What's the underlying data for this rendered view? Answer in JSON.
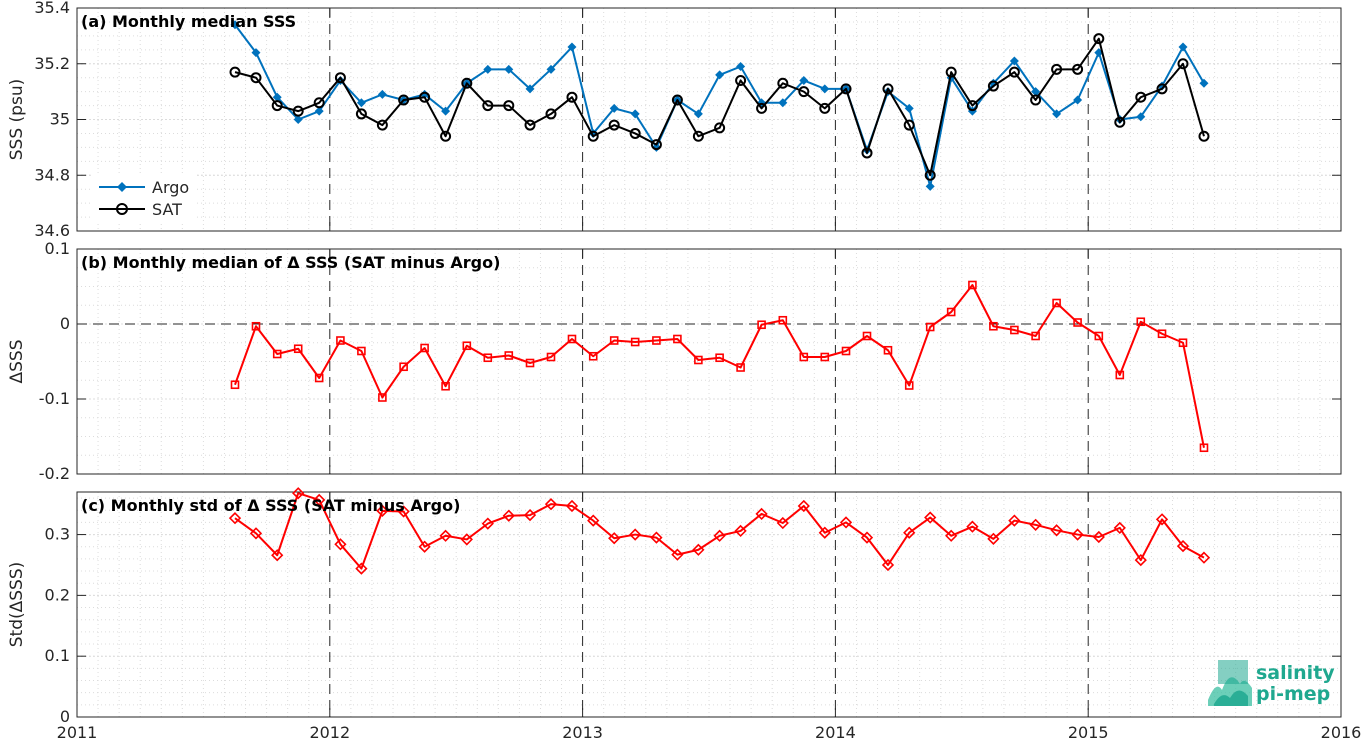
{
  "logo": {
    "line1": "salinity",
    "line2": "pi-mep",
    "color": "#1fa88f"
  },
  "colors": {
    "argo": "#0072bd",
    "sat": "#000000",
    "delta": "#ff0000",
    "grid": "#dcdcdc"
  },
  "chart_data": [
    {
      "type": "line",
      "title": "(a) Monthly median SSS",
      "xlabel": "",
      "ylabel": "SSS (psu)",
      "xlim": [
        2011,
        2016
      ],
      "ylim": [
        34.6,
        35.4
      ],
      "xticks": [
        "2011",
        "2012",
        "2013",
        "2014",
        "2015",
        "2016"
      ],
      "yticks": [
        "34.6",
        "34.8",
        "35",
        "35.2",
        "35.4"
      ],
      "grid": true,
      "legend": "lower-left",
      "x": [
        2011.625,
        2011.708,
        2011.792,
        2011.875,
        2011.958,
        2012.042,
        2012.125,
        2012.208,
        2012.292,
        2012.375,
        2012.458,
        2012.542,
        2012.625,
        2012.708,
        2012.792,
        2012.875,
        2012.958,
        2013.042,
        2013.125,
        2013.208,
        2013.292,
        2013.375,
        2013.458,
        2013.542,
        2013.625,
        2013.708,
        2013.792,
        2013.875,
        2013.958,
        2014.042,
        2014.125,
        2014.208,
        2014.292,
        2014.375,
        2014.458,
        2014.542,
        2014.625,
        2014.708,
        2014.792,
        2014.875,
        2014.958,
        2015.042,
        2015.125,
        2015.208,
        2015.292,
        2015.375,
        2015.458
      ],
      "series": [
        {
          "name": "Argo",
          "marker": "diamond-filled",
          "values": [
            35.34,
            35.24,
            35.08,
            35.0,
            35.03,
            35.14,
            35.06,
            35.09,
            35.07,
            35.09,
            35.03,
            35.13,
            35.18,
            35.18,
            35.11,
            35.18,
            35.26,
            34.95,
            35.04,
            35.02,
            34.9,
            35.07,
            35.02,
            35.16,
            35.19,
            35.06,
            35.06,
            35.14,
            35.11,
            35.11,
            34.89,
            35.1,
            35.04,
            34.76,
            35.15,
            35.03,
            35.13,
            35.21,
            35.1,
            35.02,
            35.07,
            35.24,
            35.0,
            35.01,
            35.12,
            35.26,
            35.13
          ]
        },
        {
          "name": "SAT",
          "marker": "circle-open",
          "values": [
            35.17,
            35.15,
            35.05,
            35.03,
            35.06,
            35.15,
            35.02,
            34.98,
            35.07,
            35.08,
            34.94,
            35.13,
            35.05,
            35.05,
            34.98,
            35.02,
            35.08,
            34.94,
            34.98,
            34.95,
            34.91,
            35.07,
            34.94,
            34.97,
            35.14,
            35.04,
            35.13,
            35.1,
            35.04,
            35.11,
            34.88,
            35.11,
            34.98,
            34.8,
            35.17,
            35.05,
            35.12,
            35.17,
            35.07,
            35.18,
            35.18,
            35.29,
            34.99,
            35.08,
            35.11,
            35.2,
            34.94
          ]
        }
      ]
    },
    {
      "type": "line",
      "title": "(b) Monthly median of Δ SSS (SAT minus Argo)",
      "xlabel": "",
      "ylabel": "ΔSSS",
      "xlim": [
        2011,
        2016
      ],
      "ylim": [
        -0.2,
        0.1
      ],
      "xticks": [
        "2011",
        "2012",
        "2013",
        "2014",
        "2015",
        "2016"
      ],
      "yticks": [
        "-0.2",
        "-0.1",
        "0",
        "0.1"
      ],
      "grid": true,
      "x": [
        2011.625,
        2011.708,
        2011.792,
        2011.875,
        2011.958,
        2012.042,
        2012.125,
        2012.208,
        2012.292,
        2012.375,
        2012.458,
        2012.542,
        2012.625,
        2012.708,
        2012.792,
        2012.875,
        2012.958,
        2013.042,
        2013.125,
        2013.208,
        2013.292,
        2013.375,
        2013.458,
        2013.542,
        2013.625,
        2013.708,
        2013.792,
        2013.875,
        2013.958,
        2014.042,
        2014.125,
        2014.208,
        2014.292,
        2014.375,
        2014.458,
        2014.542,
        2014.625,
        2014.708,
        2014.792,
        2014.875,
        2014.958,
        2015.042,
        2015.125,
        2015.208,
        2015.292,
        2015.375,
        2015.458
      ],
      "series": [
        {
          "name": "",
          "marker": "square-open",
          "values": [
            -0.081,
            -0.003,
            -0.04,
            -0.033,
            -0.072,
            -0.022,
            -0.036,
            -0.098,
            -0.057,
            -0.032,
            -0.083,
            -0.029,
            -0.045,
            -0.042,
            -0.052,
            -0.044,
            -0.02,
            -0.043,
            -0.022,
            -0.024,
            -0.022,
            -0.02,
            -0.048,
            -0.045,
            -0.058,
            -0.001,
            0.005,
            -0.044,
            -0.044,
            -0.036,
            -0.016,
            -0.035,
            -0.082,
            -0.004,
            0.016,
            0.052,
            -0.003,
            -0.008,
            -0.016,
            0.028,
            0.002,
            -0.016,
            -0.068,
            0.003,
            -0.013,
            -0.025,
            -0.165
          ]
        }
      ]
    },
    {
      "type": "line",
      "title": "(c) Monthly std of Δ SSS (SAT minus Argo)",
      "xlabel": "",
      "ylabel": "Std(ΔSSS)",
      "xlim": [
        2011,
        2016
      ],
      "ylim": [
        0,
        0.37
      ],
      "xticks": [
        "2011",
        "2012",
        "2013",
        "2014",
        "2015",
        "2016"
      ],
      "yticks": [
        "0",
        "0.1",
        "0.2",
        "0.3"
      ],
      "grid": true,
      "x": [
        2011.625,
        2011.708,
        2011.792,
        2011.875,
        2011.958,
        2012.042,
        2012.125,
        2012.208,
        2012.292,
        2012.375,
        2012.458,
        2012.542,
        2012.625,
        2012.708,
        2012.792,
        2012.875,
        2012.958,
        2013.042,
        2013.125,
        2013.208,
        2013.292,
        2013.375,
        2013.458,
        2013.542,
        2013.625,
        2013.708,
        2013.792,
        2013.875,
        2013.958,
        2014.042,
        2014.125,
        2014.208,
        2014.292,
        2014.375,
        2014.458,
        2014.542,
        2014.625,
        2014.708,
        2014.792,
        2014.875,
        2014.958,
        2015.042,
        2015.125,
        2015.208,
        2015.292,
        2015.375,
        2015.458
      ],
      "series": [
        {
          "name": "",
          "marker": "diamond-open",
          "values": [
            0.327,
            0.302,
            0.266,
            0.368,
            0.357,
            0.284,
            0.244,
            0.339,
            0.338,
            0.28,
            0.298,
            0.292,
            0.318,
            0.331,
            0.332,
            0.35,
            0.347,
            0.323,
            0.294,
            0.3,
            0.295,
            0.267,
            0.275,
            0.298,
            0.306,
            0.334,
            0.319,
            0.347,
            0.303,
            0.32,
            0.295,
            0.25,
            0.303,
            0.328,
            0.298,
            0.313,
            0.293,
            0.323,
            0.316,
            0.307,
            0.3,
            0.296,
            0.311,
            0.258,
            0.325,
            0.281,
            0.262
          ]
        }
      ]
    }
  ]
}
